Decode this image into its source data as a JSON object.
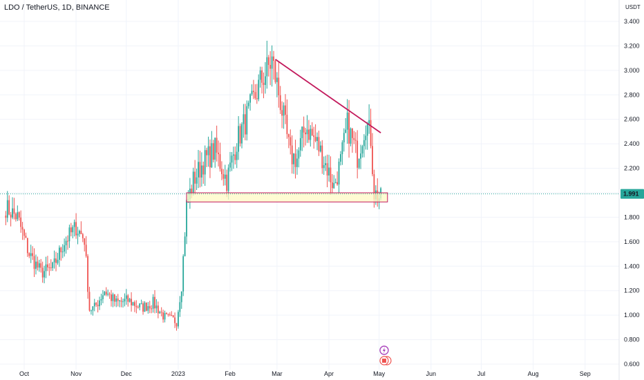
{
  "header": {
    "symbol_title": "LDO / TetherUS, 1D, BINANCE",
    "currency_unit": "USDT"
  },
  "price_tag": {
    "label": "1.991",
    "color": "#26a69a"
  },
  "colors": {
    "up": "#26a69a",
    "down": "#ef5350",
    "trendline": "#c2185b",
    "zone_fill": "#fff9c4",
    "zone_border": "#c2185b",
    "axis_text": "#131722"
  },
  "icons": [
    "flash-icon",
    "flag-icon"
  ],
  "chart_data": {
    "type": "candlestick",
    "title": "LDO / TetherUS, 1D, BINANCE",
    "ylabel": "USDT",
    "ylim": [
      0.6,
      3.45
    ],
    "y_ticks": [
      "3.400",
      "3.200",
      "3.000",
      "2.800",
      "2.600",
      "2.400",
      "2.200",
      "2.000",
      "1.800",
      "1.600",
      "1.400",
      "1.200",
      "1.000",
      "0.800",
      "0.600"
    ],
    "x_ticks": [
      "Oct",
      "Nov",
      "Dec",
      "2023",
      "Feb",
      "Mar",
      "Apr",
      "May",
      "Jun",
      "Jul",
      "Aug",
      "Sep"
    ],
    "x_tick_dates": [
      "2022-10-01",
      "2022-11-01",
      "2022-12-01",
      "2023-01-01",
      "2023-02-01",
      "2023-03-01",
      "2023-04-01",
      "2023-05-01",
      "2023-06-01",
      "2023-07-01",
      "2023-08-01",
      "2023-09-01"
    ],
    "date_range": [
      "2022-09-20",
      "2023-05-02"
    ],
    "grid": true,
    "last_price": 1.991,
    "trendline": {
      "from": {
        "date": "2023-02-28",
        "price": 3.09
      },
      "to": {
        "date": "2023-05-02",
        "price": 2.49
      }
    },
    "support_zone": {
      "from_date": "2023-01-06",
      "to_date": "2023-05-06",
      "top": 2.0,
      "bottom": 1.925
    },
    "close_path": [
      [
        "2022-09-20",
        1.88
      ],
      [
        "2022-09-27",
        1.8
      ],
      [
        "2022-10-04",
        1.5
      ],
      [
        "2022-10-11",
        1.35
      ],
      [
        "2022-10-18",
        1.38
      ],
      [
        "2022-10-25",
        1.6
      ],
      [
        "2022-11-01",
        1.72
      ],
      [
        "2022-11-06",
        1.62
      ],
      [
        "2022-11-09",
        1.05
      ],
      [
        "2022-11-12",
        1.06
      ],
      [
        "2022-11-18",
        1.2
      ],
      [
        "2022-11-25",
        1.1
      ],
      [
        "2022-12-02",
        1.12
      ],
      [
        "2022-12-10",
        1.06
      ],
      [
        "2022-12-17",
        1.1
      ],
      [
        "2022-12-24",
        0.98
      ],
      [
        "2022-12-31",
        0.95
      ],
      [
        "2023-01-03",
        1.25
      ],
      [
        "2023-01-06",
        1.9
      ],
      [
        "2023-01-10",
        2.1
      ],
      [
        "2023-01-16",
        2.25
      ],
      [
        "2023-01-23",
        2.35
      ],
      [
        "2023-01-30",
        2.1
      ],
      [
        "2023-02-05",
        2.42
      ],
      [
        "2023-02-12",
        2.65
      ],
      [
        "2023-02-19",
        2.9
      ],
      [
        "2023-02-26",
        3.08
      ],
      [
        "2023-03-03",
        2.75
      ],
      [
        "2023-03-09",
        2.3
      ],
      [
        "2023-03-13",
        2.28
      ],
      [
        "2023-03-18",
        2.55
      ],
      [
        "2023-03-25",
        2.4
      ],
      [
        "2023-03-31",
        2.2
      ],
      [
        "2023-04-04",
        2.05
      ],
      [
        "2023-04-08",
        2.25
      ],
      [
        "2023-04-12",
        2.55
      ],
      [
        "2023-04-18",
        2.3
      ],
      [
        "2023-04-23",
        2.58
      ],
      [
        "2023-04-26",
        2.45
      ],
      [
        "2023-04-28",
        2.0
      ],
      [
        "2023-05-02",
        1.95
      ]
    ]
  }
}
